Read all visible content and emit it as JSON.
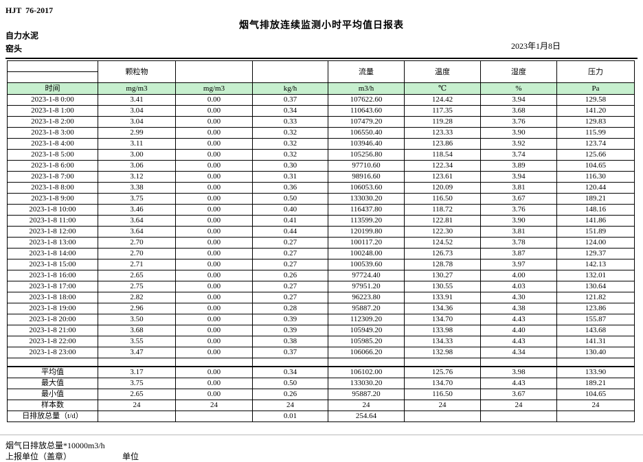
{
  "page": {
    "standard": "HJT  76-2017",
    "title": "烟气排放连续监测小时平均值日报表",
    "company": "自力水泥",
    "unit_name": "窑头",
    "date": "2023年1月8日"
  },
  "table": {
    "group_headers": [
      "",
      "颗粒物",
      "",
      "",
      "流量",
      "温度",
      "湿度",
      "压力"
    ],
    "unit_headers": [
      "时间",
      "mg/m3",
      "mg/m3",
      "kg/h",
      "m3/h",
      "℃",
      "%",
      "Pa"
    ],
    "header_fill": "#c6efce",
    "rows": [
      [
        "2023-1-8 0:00",
        "3.41",
        "0.00",
        "0.37",
        "107622.60",
        "124.42",
        "3.94",
        "129.58"
      ],
      [
        "2023-1-8 1:00",
        "3.04",
        "0.00",
        "0.34",
        "110643.60",
        "117.35",
        "3.68",
        "141.20"
      ],
      [
        "2023-1-8 2:00",
        "3.04",
        "0.00",
        "0.33",
        "107479.20",
        "119.28",
        "3.76",
        "129.83"
      ],
      [
        "2023-1-8 3:00",
        "2.99",
        "0.00",
        "0.32",
        "106550.40",
        "123.33",
        "3.90",
        "115.99"
      ],
      [
        "2023-1-8 4:00",
        "3.11",
        "0.00",
        "0.32",
        "103946.40",
        "123.86",
        "3.92",
        "123.74"
      ],
      [
        "2023-1-8 5:00",
        "3.00",
        "0.00",
        "0.32",
        "105256.80",
        "118.54",
        "3.74",
        "125.66"
      ],
      [
        "2023-1-8 6:00",
        "3.06",
        "0.00",
        "0.30",
        "97710.60",
        "122.34",
        "3.89",
        "104.65"
      ],
      [
        "2023-1-8 7:00",
        "3.12",
        "0.00",
        "0.31",
        "98916.60",
        "123.61",
        "3.94",
        "116.30"
      ],
      [
        "2023-1-8 8:00",
        "3.38",
        "0.00",
        "0.36",
        "106053.60",
        "120.09",
        "3.81",
        "120.44"
      ],
      [
        "2023-1-8 9:00",
        "3.75",
        "0.00",
        "0.50",
        "133030.20",
        "116.50",
        "3.67",
        "189.21"
      ],
      [
        "2023-1-8 10:00",
        "3.46",
        "0.00",
        "0.40",
        "116437.80",
        "118.72",
        "3.76",
        "148.16"
      ],
      [
        "2023-1-8 11:00",
        "3.64",
        "0.00",
        "0.41",
        "113599.20",
        "122.81",
        "3.90",
        "141.86"
      ],
      [
        "2023-1-8 12:00",
        "3.64",
        "0.00",
        "0.44",
        "120199.80",
        "122.30",
        "3.81",
        "151.89"
      ],
      [
        "2023-1-8 13:00",
        "2.70",
        "0.00",
        "0.27",
        "100117.20",
        "124.52",
        "3.78",
        "124.00"
      ],
      [
        "2023-1-8 14:00",
        "2.70",
        "0.00",
        "0.27",
        "100248.00",
        "126.73",
        "3.87",
        "129.37"
      ],
      [
        "2023-1-8 15:00",
        "2.71",
        "0.00",
        "0.27",
        "100539.60",
        "128.78",
        "3.97",
        "142.13"
      ],
      [
        "2023-1-8 16:00",
        "2.65",
        "0.00",
        "0.26",
        "97724.40",
        "130.27",
        "4.00",
        "132.01"
      ],
      [
        "2023-1-8 17:00",
        "2.75",
        "0.00",
        "0.27",
        "97951.20",
        "130.55",
        "4.03",
        "130.64"
      ],
      [
        "2023-1-8 18:00",
        "2.82",
        "0.00",
        "0.27",
        "96223.80",
        "133.91",
        "4.30",
        "121.82"
      ],
      [
        "2023-1-8 19:00",
        "2.96",
        "0.00",
        "0.28",
        "95887.20",
        "134.36",
        "4.38",
        "123.86"
      ],
      [
        "2023-1-8 20:00",
        "3.50",
        "0.00",
        "0.39",
        "112309.20",
        "134.70",
        "4.43",
        "155.87"
      ],
      [
        "2023-1-8 21:00",
        "3.68",
        "0.00",
        "0.39",
        "105949.20",
        "133.98",
        "4.40",
        "143.68"
      ],
      [
        "2023-1-8 22:00",
        "3.55",
        "0.00",
        "0.38",
        "105985.20",
        "134.33",
        "4.43",
        "141.31"
      ],
      [
        "2023-1-8 23:00",
        "3.47",
        "0.00",
        "0.37",
        "106066.20",
        "132.98",
        "4.34",
        "130.40"
      ]
    ],
    "summary_rows": [
      [
        "平均值",
        "3.17",
        "0.00",
        "0.34",
        "106102.00",
        "125.76",
        "3.98",
        "133.90"
      ],
      [
        "最大值",
        "3.75",
        "0.00",
        "0.50",
        "133030.20",
        "134.70",
        "4.43",
        "189.21"
      ],
      [
        "最小值",
        "2.65",
        "0.00",
        "0.26",
        "95887.20",
        "116.50",
        "3.67",
        "104.65"
      ],
      [
        "样本数",
        "24",
        "24",
        "24",
        "24",
        "24",
        "24",
        "24"
      ],
      [
        "日排放总量（t/d）",
        "",
        "",
        "0.01",
        "254.64",
        "",
        "",
        ""
      ]
    ]
  },
  "footer": {
    "note": "烟气日排放总量*10000m3/h",
    "report_unit_label": "上报单位（盖章）",
    "unit_label": "单位"
  }
}
